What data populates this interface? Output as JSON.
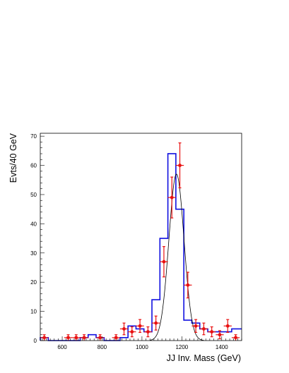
{
  "chart_data": {
    "type": "histogram",
    "xlabel": "JJ Inv. Mass (GeV)",
    "ylabel": "Evts/40 GeV",
    "xlim": [
      490,
      1500
    ],
    "ylim": [
      0,
      71
    ],
    "x_ticks": [
      600,
      800,
      1000,
      1200,
      1400
    ],
    "y_ticks": [
      0,
      10,
      20,
      30,
      40,
      50,
      60,
      70
    ],
    "bin_width": 40,
    "histogram": {
      "color": "#1010e0",
      "bins": [
        {
          "x0": 490,
          "x1": 530,
          "y": 1
        },
        {
          "x0": 530,
          "x1": 570,
          "y": 0
        },
        {
          "x0": 570,
          "x1": 610,
          "y": 0
        },
        {
          "x0": 610,
          "x1": 650,
          "y": 0
        },
        {
          "x0": 650,
          "x1": 690,
          "y": 0
        },
        {
          "x0": 690,
          "x1": 730,
          "y": 1
        },
        {
          "x0": 730,
          "x1": 770,
          "y": 2
        },
        {
          "x0": 770,
          "x1": 810,
          "y": 1
        },
        {
          "x0": 810,
          "x1": 850,
          "y": 0
        },
        {
          "x0": 850,
          "x1": 890,
          "y": 0
        },
        {
          "x0": 890,
          "x1": 930,
          "y": 1
        },
        {
          "x0": 930,
          "x1": 970,
          "y": 5
        },
        {
          "x0": 970,
          "x1": 1010,
          "y": 4
        },
        {
          "x0": 1010,
          "x1": 1050,
          "y": 3
        },
        {
          "x0": 1050,
          "x1": 1090,
          "y": 14
        },
        {
          "x0": 1090,
          "x1": 1130,
          "y": 35
        },
        {
          "x0": 1130,
          "x1": 1170,
          "y": 64
        },
        {
          "x0": 1170,
          "x1": 1210,
          "y": 45
        },
        {
          "x0": 1210,
          "x1": 1250,
          "y": 7
        },
        {
          "x0": 1250,
          "x1": 1290,
          "y": 6
        },
        {
          "x0": 1290,
          "x1": 1330,
          "y": 4
        },
        {
          "x0": 1330,
          "x1": 1370,
          "y": 3
        },
        {
          "x0": 1370,
          "x1": 1410,
          "y": 3
        },
        {
          "x0": 1410,
          "x1": 1450,
          "y": 3
        },
        {
          "x0": 1450,
          "x1": 1490,
          "y": 4
        },
        {
          "x0": 1490,
          "x1": 1500,
          "y": 4
        }
      ]
    },
    "data_points": {
      "color": "#e81010",
      "points": [
        {
          "x": 510,
          "y": 1,
          "xerr": 20,
          "yerr": 1
        },
        {
          "x": 630,
          "y": 1,
          "xerr": 20,
          "yerr": 1
        },
        {
          "x": 670,
          "y": 1,
          "xerr": 20,
          "yerr": 1
        },
        {
          "x": 710,
          "y": 1,
          "xerr": 20,
          "yerr": 1
        },
        {
          "x": 790,
          "y": 1,
          "xerr": 20,
          "yerr": 1
        },
        {
          "x": 870,
          "y": 1,
          "xerr": 20,
          "yerr": 1
        },
        {
          "x": 910,
          "y": 4,
          "xerr": 20,
          "yerr": 2
        },
        {
          "x": 950,
          "y": 3,
          "xerr": 20,
          "yerr": 1.7
        },
        {
          "x": 990,
          "y": 5,
          "xerr": 20,
          "yerr": 2.2
        },
        {
          "x": 1030,
          "y": 3,
          "xerr": 20,
          "yerr": 1.7
        },
        {
          "x": 1070,
          "y": 6,
          "xerr": 20,
          "yerr": 2.4
        },
        {
          "x": 1110,
          "y": 27,
          "xerr": 20,
          "yerr": 5.2
        },
        {
          "x": 1150,
          "y": 49,
          "xerr": 20,
          "yerr": 7
        },
        {
          "x": 1190,
          "y": 60,
          "xerr": 20,
          "yerr": 7.7
        },
        {
          "x": 1230,
          "y": 19,
          "xerr": 20,
          "yerr": 4.4
        },
        {
          "x": 1270,
          "y": 5,
          "xerr": 20,
          "yerr": 2.2
        },
        {
          "x": 1310,
          "y": 4,
          "xerr": 20,
          "yerr": 2
        },
        {
          "x": 1350,
          "y": 3,
          "xerr": 20,
          "yerr": 1.7
        },
        {
          "x": 1390,
          "y": 2,
          "xerr": 20,
          "yerr": 1.4
        },
        {
          "x": 1430,
          "y": 5,
          "xerr": 20,
          "yerr": 2.2
        },
        {
          "x": 1470,
          "y": 1,
          "xerr": 20,
          "yerr": 1
        }
      ]
    },
    "fit_curve": {
      "type": "gaussian",
      "color": "#000000",
      "amplitude": 57,
      "mean": 1173,
      "sigma": 38,
      "x_range": [
        1040,
        1310
      ]
    },
    "grid": false,
    "legend": "none"
  }
}
